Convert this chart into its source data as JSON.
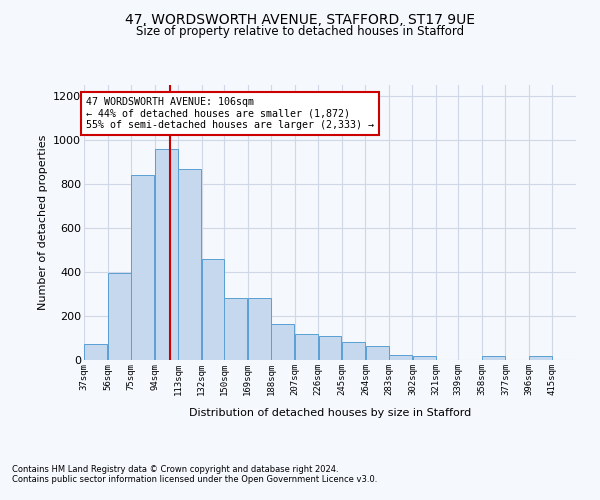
{
  "title1": "47, WORDSWORTH AVENUE, STAFFORD, ST17 9UE",
  "title2": "Size of property relative to detached houses in Stafford",
  "xlabel": "Distribution of detached houses by size in Stafford",
  "ylabel": "Number of detached properties",
  "footer1": "Contains HM Land Registry data © Crown copyright and database right 2024.",
  "footer2": "Contains public sector information licensed under the Open Government Licence v3.0.",
  "annotation_line1": "47 WORDSWORTH AVENUE: 106sqm",
  "annotation_line2": "← 44% of detached houses are smaller (1,872)",
  "annotation_line3": "55% of semi-detached houses are larger (2,333) →",
  "property_size": 106,
  "bar_left_edges": [
    37,
    56,
    75,
    94,
    113,
    132,
    150,
    169,
    188,
    207,
    226,
    245,
    264,
    283,
    302,
    321,
    339,
    358,
    377,
    396
  ],
  "bar_widths": [
    19,
    19,
    19,
    19,
    19,
    18,
    19,
    19,
    19,
    19,
    19,
    19,
    19,
    19,
    19,
    18,
    19,
    19,
    19,
    19
  ],
  "bar_heights": [
    75,
    395,
    840,
    960,
    870,
    460,
    280,
    280,
    165,
    120,
    110,
    80,
    65,
    25,
    20,
    0,
    0,
    20,
    0,
    20
  ],
  "tick_labels": [
    "37sqm",
    "56sqm",
    "75sqm",
    "94sqm",
    "113sqm",
    "132sqm",
    "150sqm",
    "169sqm",
    "188sqm",
    "207sqm",
    "226sqm",
    "245sqm",
    "264sqm",
    "283sqm",
    "302sqm",
    "321sqm",
    "339sqm",
    "358sqm",
    "377sqm",
    "396sqm",
    "415sqm"
  ],
  "bar_color": "#c5d8ed",
  "bar_edge_color": "#5a9fd4",
  "red_line_color": "#cc0000",
  "annotation_box_color": "#cc0000",
  "grid_color": "#d0d8e8",
  "background_color": "#f5f8fd",
  "ylim": [
    0,
    1250
  ],
  "yticks": [
    0,
    200,
    400,
    600,
    800,
    1000,
    1200
  ]
}
